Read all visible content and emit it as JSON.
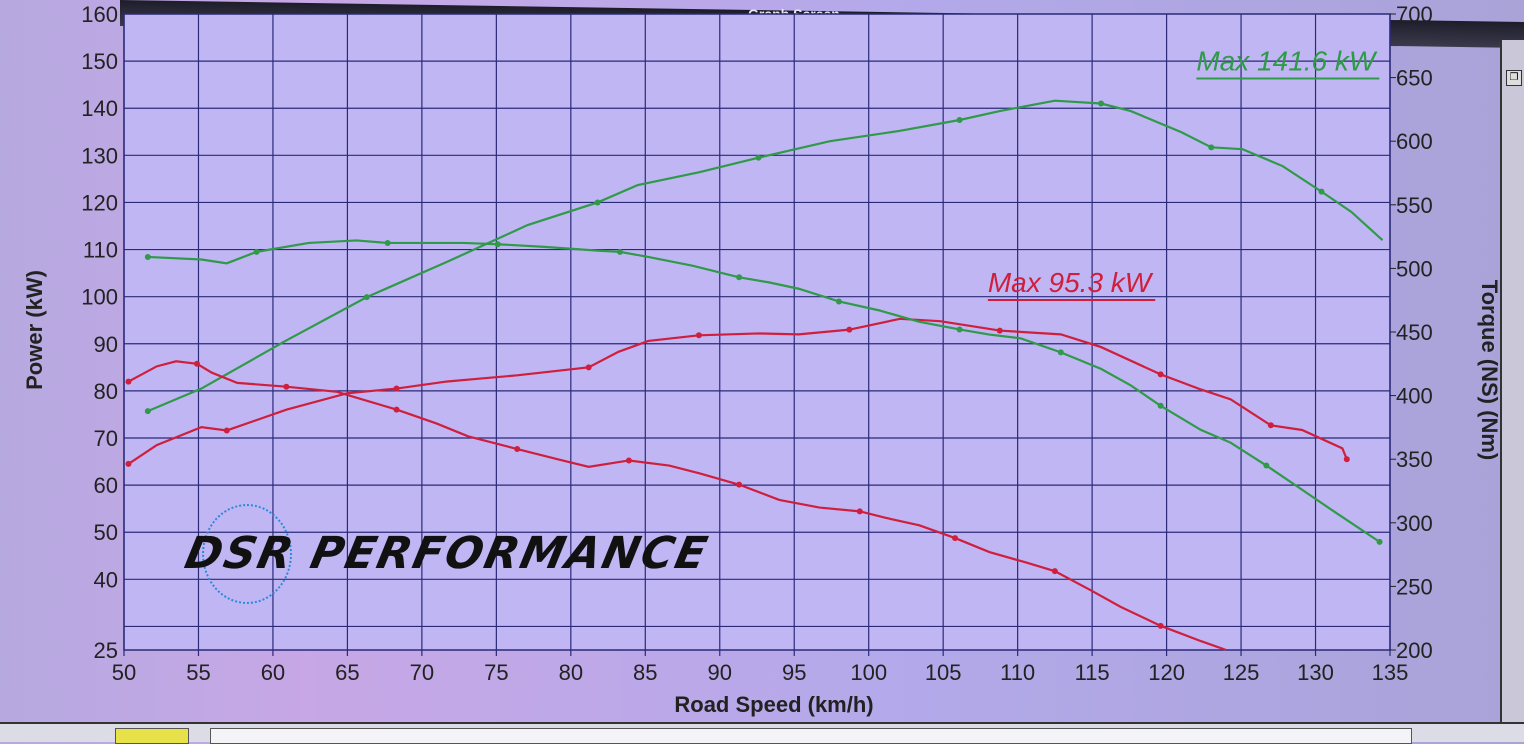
{
  "window": {
    "title": "Graph Screen"
  },
  "logo": {
    "text": "DSR PERFORMANCE"
  },
  "chart_data": {
    "type": "line",
    "xlabel": "Road Speed (km/h)",
    "ylabel_left": "Power (kW)",
    "ylabel_right": "Torque (NS) (Nm)",
    "xlim": [
      50,
      135
    ],
    "ylim_left": [
      25,
      160
    ],
    "ylim_right": [
      200,
      700
    ],
    "x_ticks": [
      50,
      55,
      60,
      65,
      70,
      75,
      80,
      85,
      90,
      95,
      100,
      105,
      110,
      115,
      120,
      125,
      130,
      135
    ],
    "y_left_ticks": [
      25,
      40,
      50,
      60,
      70,
      80,
      90,
      100,
      110,
      120,
      130,
      140,
      150,
      160
    ],
    "y_right_ticks": [
      200,
      250,
      300,
      350,
      400,
      450,
      500,
      550,
      600,
      650,
      700
    ],
    "grid": true,
    "colors": {
      "green": "#2f9a48",
      "red": "#cf1f3c",
      "grid": "#2b2a78",
      "plot_bg": "#c0b6f4"
    },
    "series": [
      {
        "axis": "left",
        "color": "#2f9a48",
        "x": [
          51.6,
          55.2,
          60.9,
          66.3,
          71.7,
          77.1,
          81.8,
          84.5,
          88.6,
          92.6,
          97.4,
          102.1,
          106.1,
          108.8,
          112.5,
          115.6,
          117.6,
          121.0,
          123.0,
          125.1,
          127.8,
          130.4,
          132.4,
          134.5
        ],
        "y": [
          75.7,
          80.5,
          90.7,
          99.9,
          107.4,
          115.2,
          120.0,
          123.7,
          126.4,
          129.5,
          133.0,
          135.2,
          137.5,
          139.4,
          141.6,
          141.0,
          139.4,
          134.9,
          131.7,
          131.3,
          127.7,
          122.3,
          118.0,
          112.0
        ]
      },
      {
        "axis": "left",
        "color": "#cf1f3c",
        "x": [
          50.3,
          52.2,
          55.2,
          56.9,
          60.9,
          65.0,
          68.3,
          71.7,
          76.4,
          81.2,
          83.2,
          85.2,
          88.6,
          92.6,
          95.3,
          98.7,
          102.1,
          104.8,
          108.8,
          112.9,
          115.6,
          119.6,
          122.3,
          124.3,
          127.0,
          129.1,
          131.8,
          132.1
        ],
        "y": [
          64.5,
          68.5,
          72.3,
          71.6,
          76.0,
          79.5,
          80.5,
          82.0,
          83.3,
          85.0,
          88.3,
          90.6,
          91.8,
          92.2,
          92.0,
          93.0,
          95.3,
          94.8,
          92.8,
          92.0,
          89.3,
          83.5,
          80.3,
          78.2,
          72.7,
          71.7,
          67.8,
          65.5
        ]
      },
      {
        "axis": "right",
        "color": "#2f9a48",
        "x": [
          51.6,
          55.2,
          56.9,
          58.9,
          62.4,
          65.6,
          67.7,
          71.0,
          72.8,
          75.1,
          78.1,
          81.8,
          83.3,
          85.2,
          88.2,
          91.3,
          93.3,
          95.3,
          98.0,
          100.7,
          103.4,
          106.1,
          108.1,
          110.2,
          112.9,
          115.6,
          117.6,
          119.6,
          122.3,
          124.3,
          126.7,
          129.1,
          131.1,
          134.3
        ],
        "y": [
          509,
          507,
          504,
          513,
          520,
          522,
          520,
          520,
          520,
          519,
          517,
          514,
          513,
          509,
          502,
          493,
          489,
          484,
          474,
          467,
          458,
          452,
          448,
          445,
          434,
          421,
          408,
          392,
          373,
          363,
          345,
          326,
          310,
          285
        ]
      },
      {
        "axis": "right",
        "color": "#cf1f3c",
        "x": [
          50.3,
          52.2,
          53.5,
          54.9,
          55.9,
          57.6,
          60.9,
          64.3,
          66.0,
          68.3,
          71.0,
          73.1,
          76.4,
          79.1,
          81.2,
          83.9,
          86.6,
          88.6,
          91.3,
          94.0,
          96.7,
          99.4,
          101.1,
          103.4,
          105.8,
          108.1,
          110.5,
          112.5,
          114.9,
          116.9,
          119.6,
          122.3,
          124.0
        ],
        "y": [
          411,
          423,
          427,
          425,
          418,
          410,
          407,
          403,
          397,
          389,
          378,
          368,
          358,
          350,
          344,
          349,
          345,
          339,
          330,
          318,
          312,
          309,
          304,
          298,
          288,
          277,
          269,
          262,
          247,
          234,
          219,
          207,
          200
        ]
      }
    ],
    "annotations": [
      {
        "text": "Max 141.6 kW",
        "color": "#2f9a48",
        "x": 122,
        "y": 148
      },
      {
        "text": "Max 95.3 kW",
        "color": "#cf1f3c",
        "x": 108,
        "y": 101
      }
    ]
  }
}
